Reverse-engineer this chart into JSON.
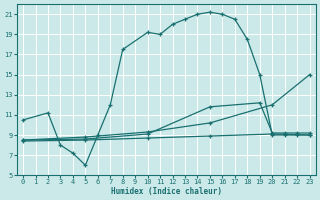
{
  "xlabel": "Humidex (Indice chaleur)",
  "bg_color": "#cce9e9",
  "grid_color": "#ffffff",
  "line_color": "#1a7070",
  "xlim": [
    -0.5,
    23.5
  ],
  "ylim": [
    5,
    22
  ],
  "xticks": [
    0,
    1,
    2,
    3,
    4,
    5,
    6,
    7,
    8,
    9,
    10,
    11,
    12,
    13,
    14,
    15,
    16,
    17,
    18,
    19,
    20,
    21,
    22,
    23
  ],
  "yticks": [
    5,
    7,
    9,
    11,
    13,
    15,
    17,
    19,
    21
  ],
  "series": [
    {
      "x": [
        0,
        2,
        3,
        4,
        5,
        6,
        7,
        8,
        10,
        11,
        12,
        13,
        14,
        15,
        16,
        17,
        18,
        19,
        20,
        21,
        22,
        23
      ],
      "y": [
        10.5,
        11.2,
        8.0,
        7.2,
        6.0,
        9.0,
        12.0,
        17.5,
        19.2,
        19.0,
        20.0,
        20.5,
        21.0,
        21.2,
        21.0,
        20.5,
        18.5,
        15.0,
        9.0,
        9.0,
        9.0,
        9.0
      ]
    },
    {
      "x": [
        0,
        5,
        10,
        15,
        20,
        23
      ],
      "y": [
        8.4,
        8.5,
        8.7,
        8.9,
        9.1,
        9.0
      ]
    },
    {
      "x": [
        0,
        5,
        10,
        15,
        19,
        20,
        21,
        22,
        23
      ],
      "y": [
        8.5,
        8.6,
        9.1,
        11.8,
        12.2,
        9.2,
        9.2,
        9.2,
        9.2
      ]
    },
    {
      "x": [
        0,
        5,
        10,
        15,
        20,
        23
      ],
      "y": [
        8.5,
        8.8,
        9.3,
        10.2,
        12.0,
        15.0
      ]
    }
  ]
}
